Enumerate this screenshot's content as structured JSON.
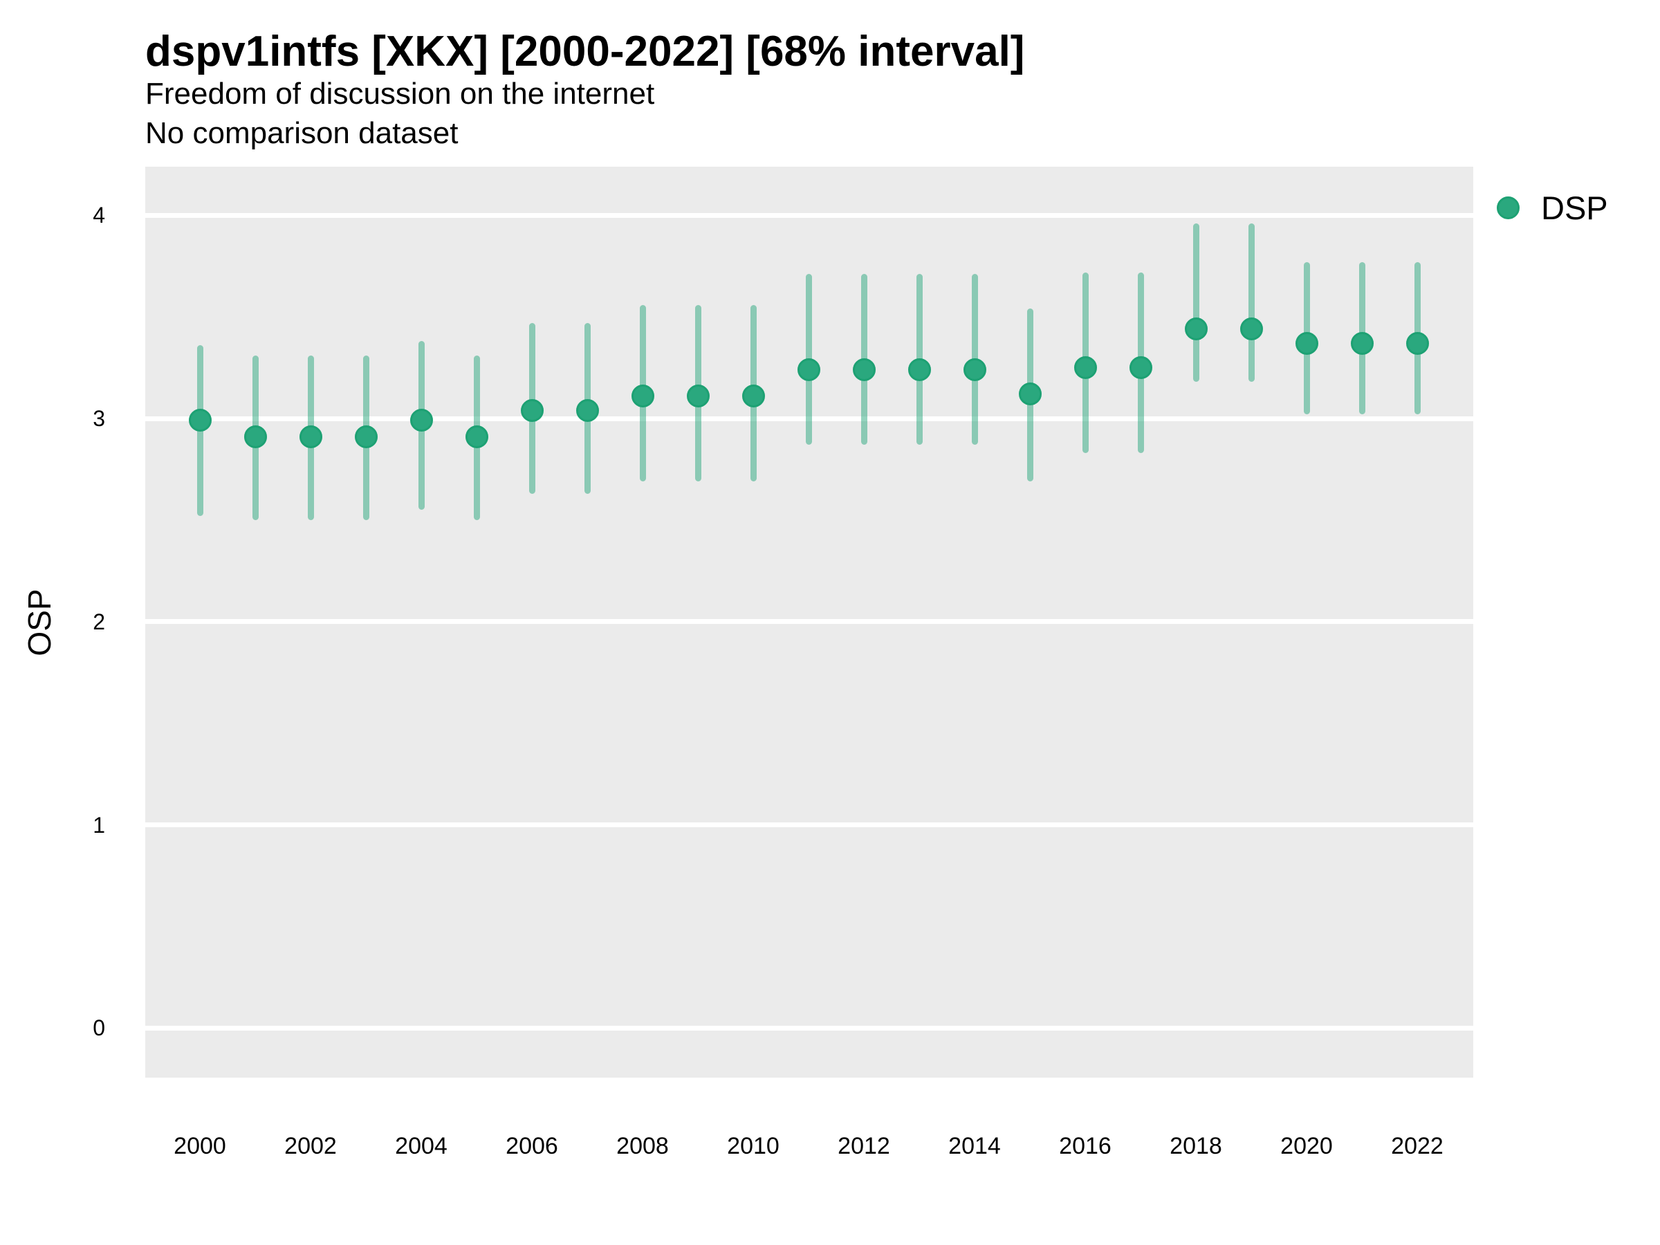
{
  "header": {
    "title": "dspv1intfs [XKX] [2000-2022] [68% interval]",
    "subtitle": "Freedom of discussion on the internet",
    "note": "No comparison dataset"
  },
  "axes": {
    "y_title": "OSP",
    "y_ticks": [
      4,
      3,
      2,
      1,
      0
    ],
    "x_ticks": [
      2000,
      2002,
      2004,
      2006,
      2008,
      2010,
      2012,
      2014,
      2016,
      2018,
      2020,
      2022
    ]
  },
  "legend": {
    "items": [
      {
        "label": "DSP",
        "color": "#2aa87e"
      }
    ]
  },
  "colors": {
    "background": "#ffffff",
    "panel": "#ebebeb",
    "gridline": "#ffffff",
    "point_fill": "#2aa87e",
    "point_ring": "#1da173",
    "interval": "rgba(42, 168, 126, 0.5)",
    "text": "#000000"
  },
  "chart_data": {
    "type": "pointrange",
    "title": "dspv1intfs [XKX] [2000-2022] [68% interval]",
    "subtitle": "Freedom of discussion on the internet",
    "note": "No comparison dataset",
    "interval_label": "68% interval",
    "xlabel": "",
    "ylabel": "OSP",
    "ylim": [
      0,
      4
    ],
    "grid": "horizontal-major-only",
    "legend_position": "right-top",
    "series": [
      {
        "name": "DSP",
        "x": [
          2000,
          2001,
          2002,
          2003,
          2004,
          2005,
          2006,
          2007,
          2008,
          2009,
          2010,
          2011,
          2012,
          2013,
          2014,
          2015,
          2016,
          2017,
          2018,
          2019,
          2020,
          2021,
          2022
        ],
        "y": [
          2.99,
          2.91,
          2.91,
          2.91,
          2.99,
          2.91,
          3.04,
          3.04,
          3.11,
          3.11,
          3.11,
          3.24,
          3.24,
          3.24,
          3.24,
          3.12,
          3.25,
          3.25,
          3.44,
          3.44,
          3.37,
          3.37,
          3.37
        ],
        "y_lo": [
          2.52,
          2.5,
          2.5,
          2.5,
          2.55,
          2.5,
          2.63,
          2.63,
          2.69,
          2.69,
          2.69,
          2.87,
          2.87,
          2.87,
          2.87,
          2.69,
          2.83,
          2.83,
          3.18,
          3.18,
          3.02,
          3.02,
          3.02
        ],
        "y_hi": [
          3.36,
          3.31,
          3.31,
          3.31,
          3.38,
          3.31,
          3.47,
          3.47,
          3.56,
          3.56,
          3.56,
          3.71,
          3.71,
          3.71,
          3.71,
          3.54,
          3.72,
          3.72,
          3.96,
          3.96,
          3.77,
          3.77,
          3.77
        ]
      }
    ]
  }
}
